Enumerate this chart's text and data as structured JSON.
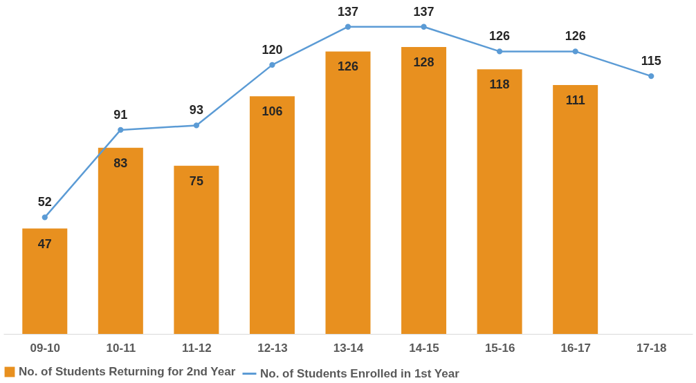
{
  "chart_data": {
    "type": "bar",
    "categories": [
      "09-10",
      "10-11",
      "11-12",
      "12-13",
      "13-14",
      "14-15",
      "15-16",
      "16-17",
      "17-18"
    ],
    "series": [
      {
        "name": "No. of Students Returning for 2nd Year",
        "color": "#e8901f",
        "values": [
          47,
          83,
          75,
          106,
          126,
          128,
          118,
          111,
          null
        ]
      },
      {
        "name": "No. of Students Enrolled in 1st Year",
        "type": "line",
        "color": "#5b9bd5",
        "values": [
          52,
          91,
          93,
          120,
          137,
          137,
          126,
          126,
          115
        ]
      }
    ],
    "tick_labels": "x",
    "data_labels": true,
    "legend": "bottom",
    "grid": false,
    "marker": "circle"
  }
}
